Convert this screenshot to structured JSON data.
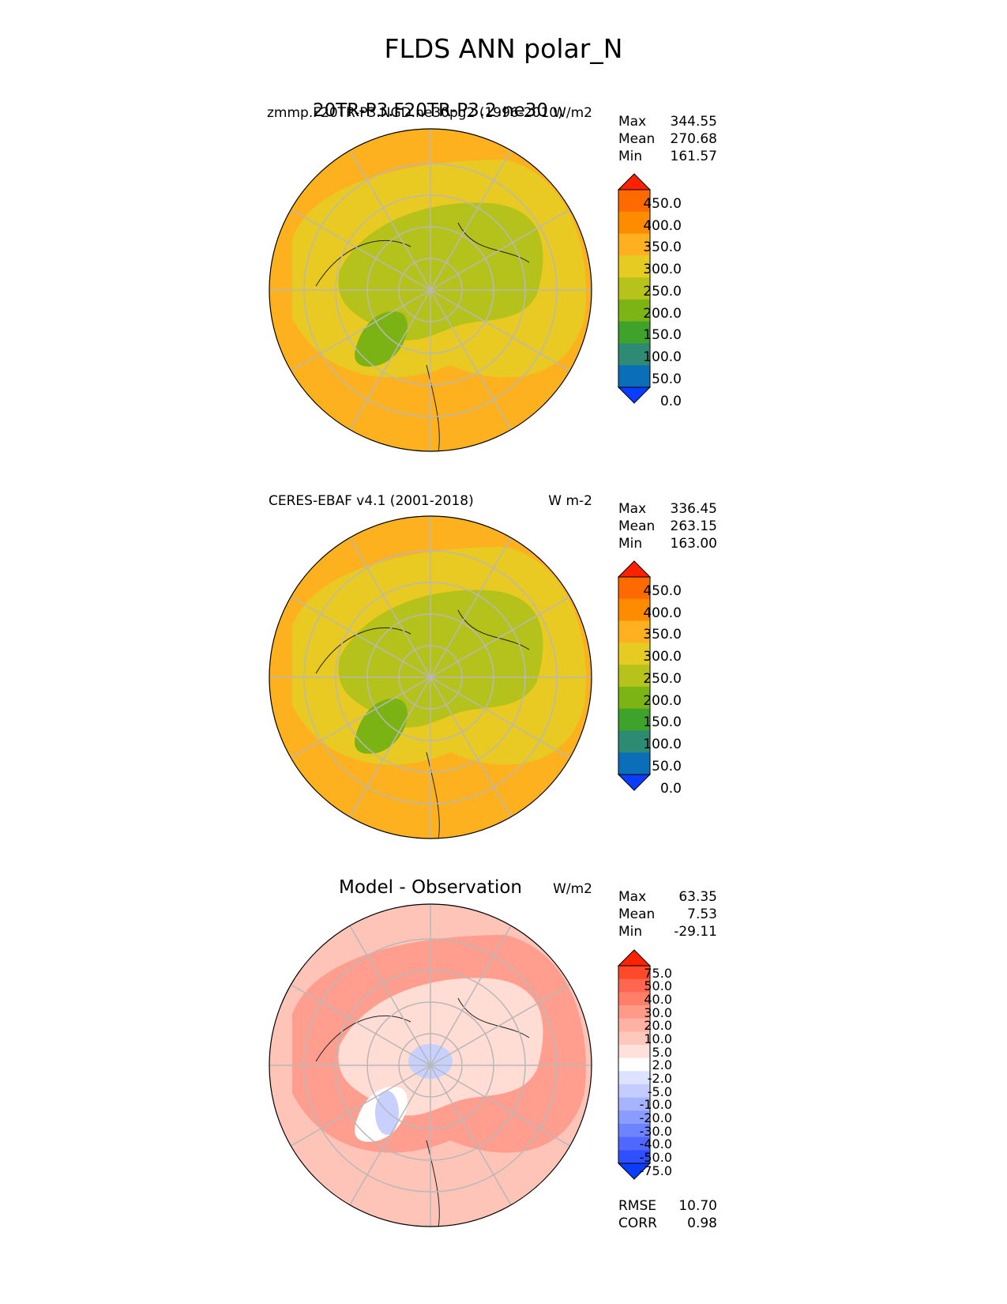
{
  "figure": {
    "title": "FLDS ANN polar_N"
  },
  "panels": [
    {
      "left_title": "zmmp.F20TR-P3.NGD.ne30pg2 (1996-2010)",
      "center_title": "20TR-P3.F20TR-P3.2.ne30",
      "units": "W/m2",
      "stats": {
        "max_label": "Max",
        "max": "344.55",
        "mean_label": "Mean",
        "mean": "270.68",
        "min_label": "Min",
        "min": "161.57"
      },
      "colorbar": {
        "ticks": [
          "450.0",
          "400.0",
          "350.0",
          "300.0",
          "250.0",
          "200.0",
          "150.0",
          "100.0",
          "50.0",
          "0.0"
        ],
        "colors": [
          "#ff2200",
          "#ff6a00",
          "#ff8c00",
          "#ffb020",
          "#e6cc22",
          "#b6c31a",
          "#7cb416",
          "#3fa22a",
          "#2d8a73",
          "#0a6fb8",
          "#0a3dff"
        ]
      },
      "map_colors": {
        "ocean": "#fdb11f",
        "mid": "#e8ca22",
        "land": "#b5c21c",
        "ice": "#7bb214"
      }
    },
    {
      "left_title": "CERES-EBAF v4.1 (2001-2018)",
      "center_title": "",
      "units": "W m-2",
      "stats": {
        "max_label": "Max",
        "max": "336.45",
        "mean_label": "Mean",
        "mean": "263.15",
        "min_label": "Min",
        "min": "163.00"
      },
      "colorbar": {
        "ticks": [
          "450.0",
          "400.0",
          "350.0",
          "300.0",
          "250.0",
          "200.0",
          "150.0",
          "100.0",
          "50.0",
          "0.0"
        ],
        "colors": [
          "#ff2200",
          "#ff6a00",
          "#ff8c00",
          "#ffb020",
          "#e6cc22",
          "#b6c31a",
          "#7cb416",
          "#3fa22a",
          "#2d8a73",
          "#0a6fb8",
          "#0a3dff"
        ]
      },
      "map_colors": {
        "ocean": "#fdb11f",
        "mid": "#e8ca22",
        "land": "#b5c21c",
        "ice": "#7bb214"
      }
    },
    {
      "left_title": "",
      "center_title": "Model - Observation",
      "units": "W/m2",
      "stats": {
        "max_label": "Max",
        "max": "63.35",
        "mean_label": "Mean",
        "mean": "7.53",
        "min_label": "Min",
        "min": "-29.11"
      },
      "colorbar": {
        "ticks": [
          "75.0",
          "50.0",
          "40.0",
          "30.0",
          "20.0",
          "10.0",
          "5.0",
          "2.0",
          "-2.0",
          "-5.0",
          "-10.0",
          "-20.0",
          "-30.0",
          "-40.0",
          "-50.0",
          "-75.0"
        ],
        "colors": [
          "#ff2200",
          "#ff4a2a",
          "#ff6650",
          "#ff7f68",
          "#ff9a88",
          "#ffb1a3",
          "#ffc8bd",
          "#ffe0da",
          "#ffffff",
          "#dde3ff",
          "#c2ccff",
          "#a6b4ff",
          "#8a9cff",
          "#6e84ff",
          "#5068ff",
          "#3050ff",
          "#0a3dff"
        ]
      },
      "map_colors": {
        "ocean": "#ffc4b8",
        "mid": "#ff9e8e",
        "land": "#ffdcd4",
        "ice": "#ffffff",
        "neg": "#c7d0ff"
      },
      "metrics": {
        "rmse_label": "RMSE",
        "rmse": "10.70",
        "corr_label": "CORR",
        "corr": "0.98"
      }
    }
  ]
}
